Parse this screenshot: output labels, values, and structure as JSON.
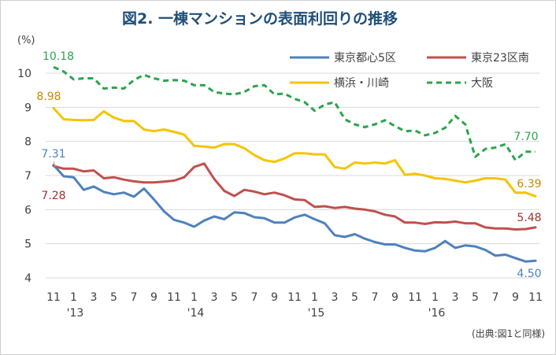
{
  "chart_data": {
    "type": "line",
    "title": "図2. 一棟マンションの表面利回りの推移",
    "unit_label": "(%)",
    "source": "(出典:図1と同様)",
    "ylim": [
      4,
      10.5
    ],
    "y_ticks": [
      4,
      5,
      6,
      7,
      8,
      9,
      10
    ],
    "grid": true,
    "legend_position": "top-right",
    "x_month_labels": [
      "11",
      "1",
      "3",
      "5",
      "7",
      "9",
      "11",
      "1",
      "3",
      "5",
      "7",
      "9",
      "11",
      "1",
      "3",
      "5",
      "7",
      "9",
      "11",
      "1",
      "3",
      "5",
      "7",
      "9",
      "11"
    ],
    "x_year_labels": [
      "'13",
      "'14",
      "'15",
      "'16"
    ],
    "x": [
      "2012-11",
      "2012-12",
      "2013-01",
      "2013-02",
      "2013-03",
      "2013-04",
      "2013-05",
      "2013-06",
      "2013-07",
      "2013-08",
      "2013-09",
      "2013-10",
      "2013-11",
      "2013-12",
      "2014-01",
      "2014-02",
      "2014-03",
      "2014-04",
      "2014-05",
      "2014-06",
      "2014-07",
      "2014-08",
      "2014-09",
      "2014-10",
      "2014-11",
      "2014-12",
      "2015-01",
      "2015-02",
      "2015-03",
      "2015-04",
      "2015-05",
      "2015-06",
      "2015-07",
      "2015-08",
      "2015-09",
      "2015-10",
      "2015-11",
      "2015-12",
      "2016-01",
      "2016-02",
      "2016-03",
      "2016-04",
      "2016-05",
      "2016-06",
      "2016-07",
      "2016-08",
      "2016-09",
      "2016-10",
      "2016-11"
    ],
    "series": [
      {
        "name": "東京都心5区",
        "color": "#4f81bd",
        "style": "solid",
        "values": [
          7.31,
          6.98,
          6.95,
          6.58,
          6.68,
          6.52,
          6.45,
          6.5,
          6.38,
          6.62,
          6.3,
          5.95,
          5.7,
          5.62,
          5.5,
          5.68,
          5.8,
          5.72,
          5.92,
          5.9,
          5.78,
          5.75,
          5.62,
          5.62,
          5.77,
          5.85,
          5.72,
          5.6,
          5.25,
          5.2,
          5.28,
          5.15,
          5.05,
          4.98,
          4.98,
          4.88,
          4.8,
          4.78,
          4.88,
          5.08,
          4.88,
          4.95,
          4.92,
          4.82,
          4.65,
          4.68,
          4.58,
          4.48,
          4.5
        ],
        "label_first": "7.31",
        "label_last": "4.50"
      },
      {
        "name": "東京23区南",
        "color": "#c0504d",
        "style": "solid",
        "values": [
          7.28,
          7.2,
          7.2,
          7.12,
          7.15,
          6.92,
          6.95,
          6.88,
          6.83,
          6.8,
          6.8,
          6.82,
          6.85,
          6.95,
          7.25,
          7.35,
          6.9,
          6.55,
          6.4,
          6.58,
          6.53,
          6.45,
          6.5,
          6.42,
          6.3,
          6.28,
          6.08,
          6.1,
          6.05,
          6.08,
          6.03,
          6.0,
          5.95,
          5.85,
          5.8,
          5.62,
          5.62,
          5.58,
          5.63,
          5.62,
          5.65,
          5.6,
          5.6,
          5.48,
          5.45,
          5.45,
          5.42,
          5.43,
          5.48
        ],
        "label_first": "7.28",
        "label_last": "5.48"
      },
      {
        "name": "横浜・川崎",
        "color": "#f5c400",
        "style": "solid",
        "values": [
          8.98,
          8.65,
          8.63,
          8.62,
          8.63,
          8.88,
          8.7,
          8.6,
          8.6,
          8.35,
          8.3,
          8.35,
          8.28,
          8.2,
          7.87,
          7.85,
          7.82,
          7.92,
          7.92,
          7.8,
          7.6,
          7.45,
          7.4,
          7.5,
          7.65,
          7.65,
          7.62,
          7.62,
          7.25,
          7.2,
          7.38,
          7.35,
          7.38,
          7.35,
          7.45,
          7.02,
          7.05,
          7.0,
          6.92,
          6.9,
          6.85,
          6.8,
          6.85,
          6.92,
          6.92,
          6.88,
          6.5,
          6.5,
          6.39
        ],
        "label_first": "8.98",
        "label_last": "6.39"
      },
      {
        "name": "大阪",
        "color": "#2aa54a",
        "style": "dashed",
        "values": [
          10.18,
          10.05,
          9.82,
          9.85,
          9.85,
          9.55,
          9.58,
          9.55,
          9.8,
          9.95,
          9.85,
          9.78,
          9.8,
          9.78,
          9.65,
          9.65,
          9.45,
          9.4,
          9.38,
          9.45,
          9.62,
          9.65,
          9.38,
          9.4,
          9.25,
          9.15,
          8.9,
          9.08,
          9.15,
          8.65,
          8.5,
          8.42,
          8.5,
          8.62,
          8.45,
          8.3,
          8.32,
          8.18,
          8.25,
          8.4,
          8.75,
          8.5,
          7.55,
          7.78,
          7.82,
          7.92,
          7.45,
          7.7,
          7.7
        ],
        "label_first": "10.18",
        "label_last": "7.70"
      }
    ]
  }
}
